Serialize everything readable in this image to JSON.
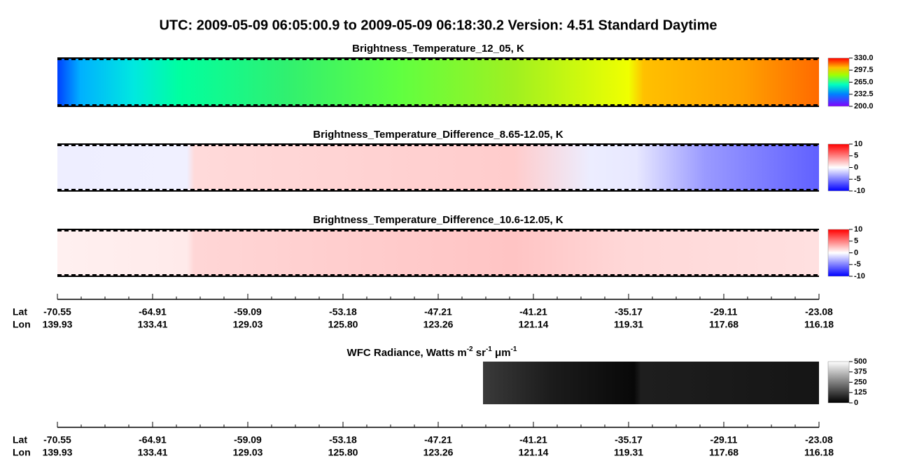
{
  "title": "UTC:  2009-05-09   06:05:00.9  to  2009-05-09   06:18:30.2    Version: 4.51  Standard Daytime",
  "panels": [
    {
      "title": "Brightness_Temperature_12_05, K",
      "range": [
        200,
        330
      ],
      "colorbar_ticks": [
        {
          "value": 330,
          "label": "330.0"
        },
        {
          "value": 297.5,
          "label": "297.5"
        },
        {
          "value": 265,
          "label": "265.0"
        },
        {
          "value": 232.5,
          "label": "232.5"
        },
        {
          "value": 200,
          "label": "200.0"
        }
      ]
    },
    {
      "title": "Brightness_Temperature_Difference_8.65-12.05, K",
      "range": [
        -10,
        10
      ],
      "colorbar_ticks": [
        10,
        5,
        0,
        -5,
        -10
      ]
    },
    {
      "title": "Brightness_Temperature_Difference_10.6-12.05, K",
      "range": [
        -10,
        10
      ],
      "colorbar_ticks": [
        10,
        5,
        0,
        -5,
        -10
      ]
    }
  ],
  "wfc": {
    "title_parts": [
      "WFC Radiance, Watts m",
      "-2",
      " sr",
      "-1",
      " μm",
      "-1"
    ],
    "range": [
      0,
      500
    ],
    "colorbar_ticks": [
      500,
      375,
      250,
      125,
      0
    ]
  },
  "axes": [
    {
      "lat_label": "Lat",
      "lon_label": "Lon",
      "lat": [
        "-70.55",
        "-64.91",
        "-59.09",
        "-53.18",
        "-47.21",
        "-41.21",
        "-35.17",
        "-29.11",
        "-23.08"
      ],
      "lon": [
        "139.93",
        "133.41",
        "129.03",
        "125.80",
        "123.26",
        "121.14",
        "119.31",
        "117.68",
        "116.18"
      ]
    },
    {
      "lat_label": "Lat",
      "lon_label": "Lon",
      "lat": [
        "-70.55",
        "-64.91",
        "-59.09",
        "-53.18",
        "-47.21",
        "-41.21",
        "-35.17",
        "-29.11",
        "-23.08"
      ],
      "lon": [
        "139.93",
        "133.41",
        "129.03",
        "125.80",
        "123.26",
        "121.14",
        "119.31",
        "117.68",
        "116.18"
      ]
    }
  ]
}
